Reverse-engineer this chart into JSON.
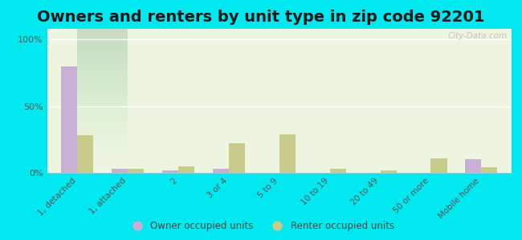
{
  "title": "Owners and renters by unit type in zip code 92201",
  "categories": [
    "1, detached",
    "1, attached",
    "2",
    "3 or 4",
    "5 to 9",
    "10 to 19",
    "20 to 49",
    "50 or more",
    "Mobile home"
  ],
  "owner_values": [
    80,
    3,
    2,
    3,
    0,
    0,
    0,
    0,
    10
  ],
  "renter_values": [
    28,
    3,
    5,
    22,
    29,
    3,
    2,
    11,
    4
  ],
  "owner_color": "#c9aed6",
  "renter_color": "#c8cc8a",
  "plot_bg_color": "#edf5e0",
  "yticks": [
    0,
    50,
    100
  ],
  "ylim": [
    0,
    108
  ],
  "background_outer": "#00e8f0",
  "watermark": "City-Data.com",
  "title_fontsize": 14,
  "bar_width": 0.32
}
